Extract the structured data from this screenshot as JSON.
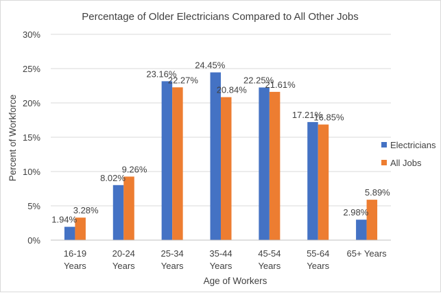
{
  "chart_data": {
    "type": "bar",
    "title": "Percentage of Older Electricians Compared to All Other Jobs",
    "xlabel": "Age of Workers",
    "ylabel": "Percent of Workforce",
    "ylim": [
      0,
      30
    ],
    "yticks": [
      "0%",
      "5%",
      "10%",
      "15%",
      "20%",
      "25%",
      "30%"
    ],
    "categories": [
      [
        "16-19",
        "Years"
      ],
      [
        "20-24",
        "Years"
      ],
      [
        "25-34",
        "Years"
      ],
      [
        "35-44",
        "Years"
      ],
      [
        "45-54",
        "Years"
      ],
      [
        "55-64",
        "Years"
      ],
      [
        "65+ Years"
      ]
    ],
    "series": [
      {
        "name": "Electricians",
        "color": "#4472C4",
        "values": [
          1.94,
          8.02,
          23.16,
          24.45,
          22.25,
          17.21,
          2.98
        ],
        "labels": [
          "1.94%",
          "8.02%",
          "23.16%",
          "24.45%",
          "22.25%",
          "17.21%",
          "2.98%"
        ]
      },
      {
        "name": "All Jobs",
        "color": "#ED7D31",
        "values": [
          3.28,
          9.26,
          22.27,
          20.84,
          21.61,
          16.85,
          5.89
        ],
        "labels": [
          "3.28%",
          "9.26%",
          "22.27%",
          "20.84%",
          "21.61%",
          "16.85%",
          "5.89%"
        ]
      }
    ],
    "grid": true,
    "legend_position": "right"
  }
}
